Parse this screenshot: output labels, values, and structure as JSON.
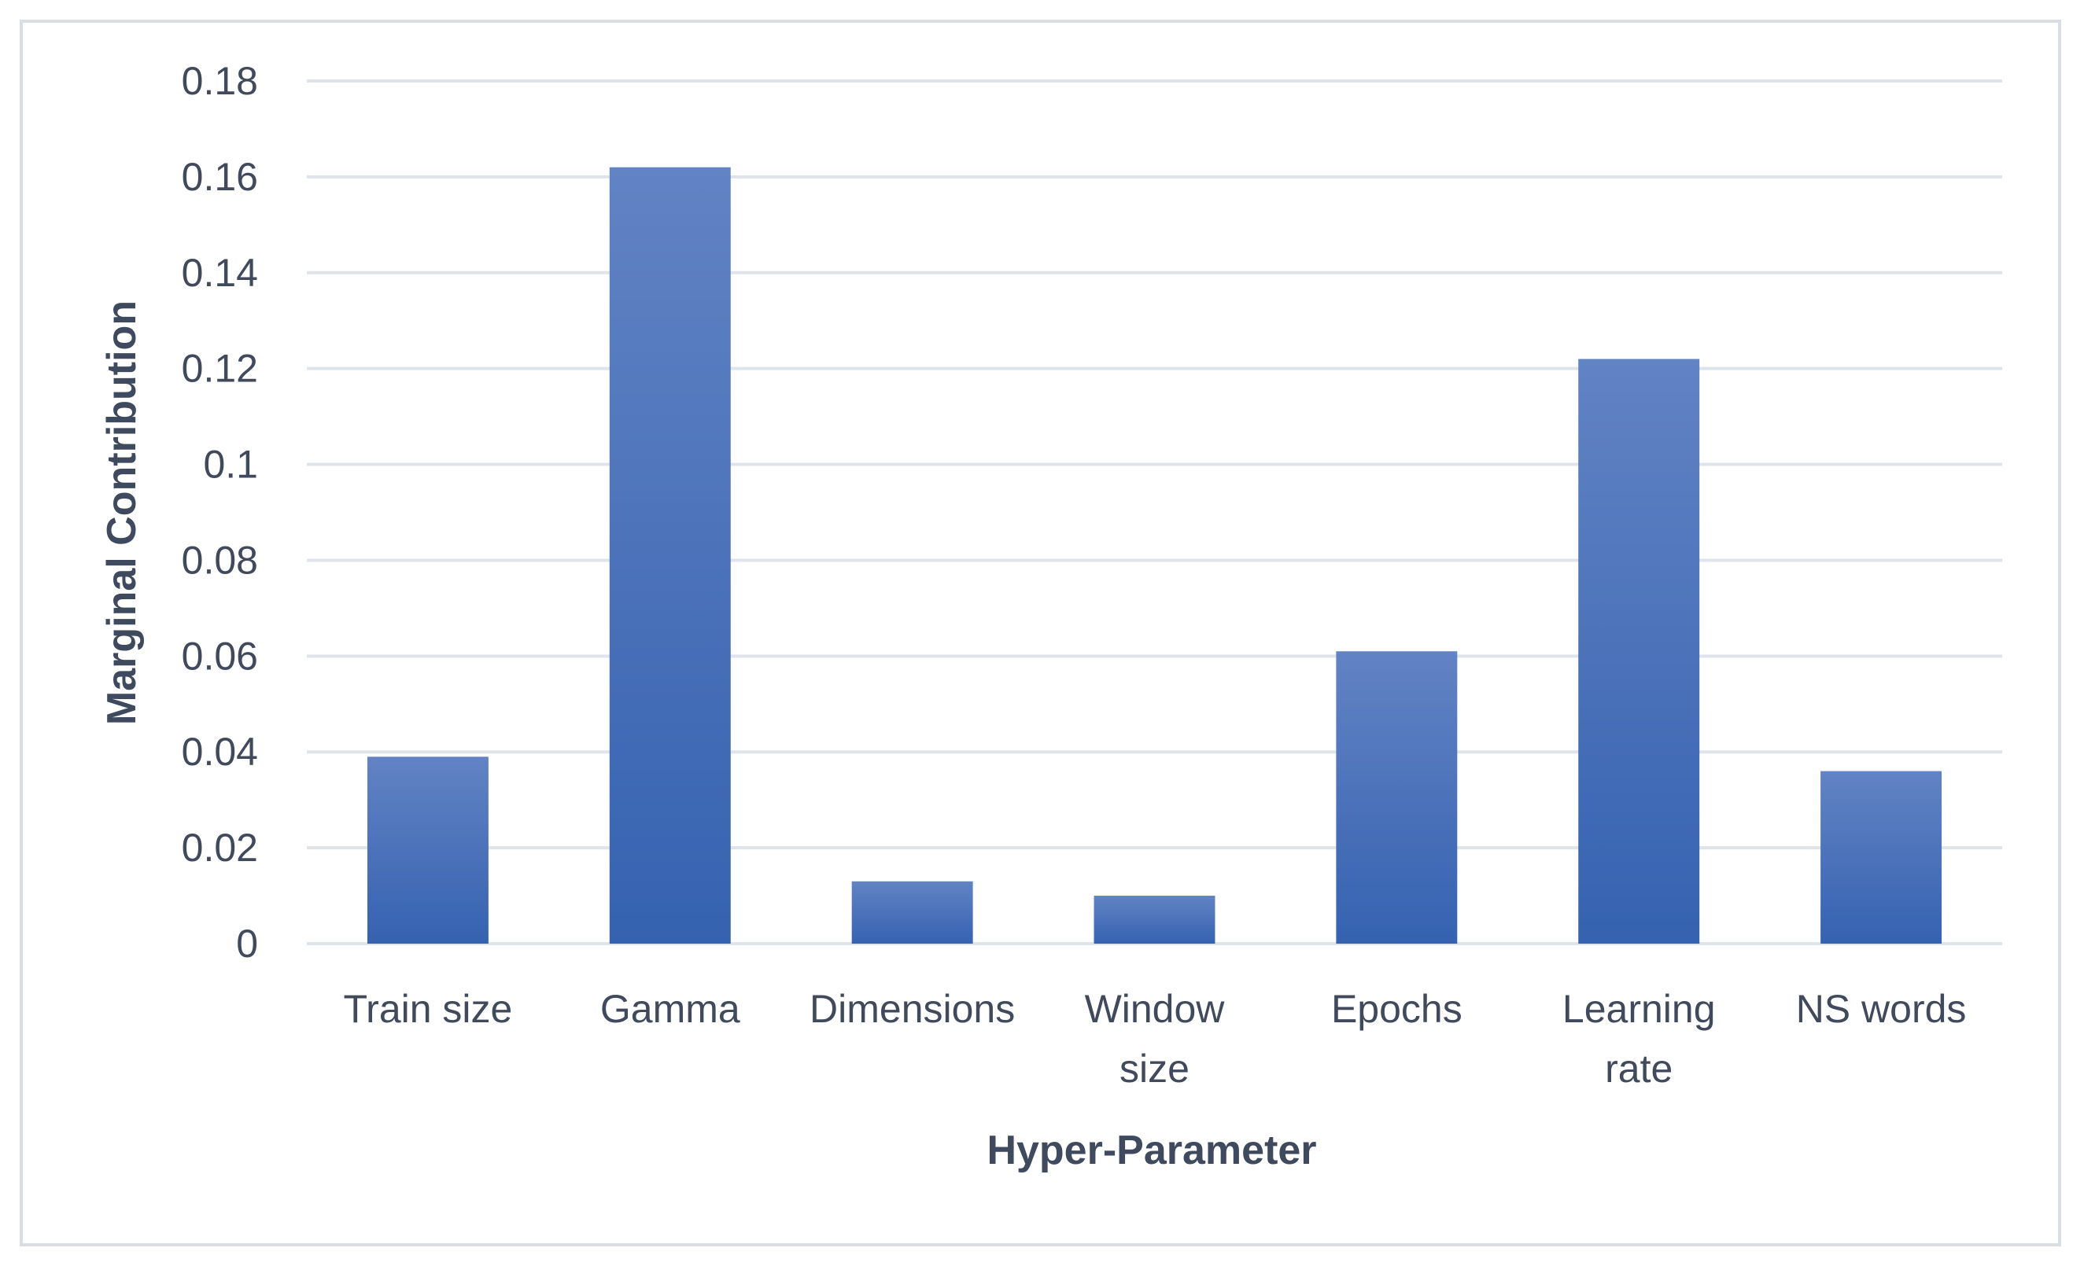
{
  "chart_data": {
    "type": "bar",
    "categories": [
      [
        "Train size"
      ],
      [
        "Gamma"
      ],
      [
        "Dimensions"
      ],
      [
        "Window",
        "size"
      ],
      [
        "Epochs"
      ],
      [
        "Learning",
        "rate"
      ],
      [
        "NS words"
      ]
    ],
    "values": [
      0.039,
      0.162,
      0.013,
      0.01,
      0.061,
      0.122,
      0.036
    ],
    "xlabel": "Hyper-Parameter",
    "ylabel": "Marginal Contribution",
    "ylim": [
      0,
      0.18
    ],
    "yticks": [
      "0",
      "0.02",
      "0.04",
      "0.06",
      "0.08",
      "0.1",
      "0.12",
      "0.14",
      "0.16",
      "0.18"
    ],
    "grid": true,
    "legend": "none",
    "colors": {
      "bar_top": "#6283c4",
      "bar_bottom": "#3562b0",
      "grid": "#dfe3ea",
      "text": "#404a5c"
    }
  }
}
